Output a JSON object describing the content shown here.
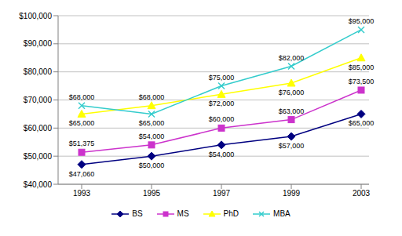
{
  "chart_data": {
    "type": "line",
    "categories": [
      "1993",
      "1995",
      "1997",
      "1999",
      "2003"
    ],
    "series": [
      {
        "name": "BS",
        "color": "#000080",
        "marker": "diamond",
        "values": [
          47060,
          50000,
          54000,
          57000,
          65000
        ],
        "value_labels": [
          "$47,060",
          "$50,000",
          "$54,000",
          "$57,000",
          "$65,000"
        ]
      },
      {
        "name": "MS",
        "color": "#cc33cc",
        "marker": "square",
        "values": [
          51375,
          54000,
          60000,
          63000,
          73500
        ],
        "value_labels": [
          "$51,375",
          "$54,000",
          "$60,000",
          "$63,000",
          "$73,500"
        ]
      },
      {
        "name": "PhD",
        "color": "#ffff00",
        "marker": "triangle",
        "values": [
          65000,
          68000,
          72000,
          76000,
          85000
        ],
        "value_labels": [
          "$65,000",
          "$68,000",
          "$72,000",
          "$76,000",
          "$85,000"
        ]
      },
      {
        "name": "MBA",
        "color": "#33cccc",
        "marker": "x",
        "values": [
          68000,
          65000,
          75000,
          82000,
          95000
        ],
        "value_labels": [
          "$68,000",
          "$65,000",
          "$75,000",
          "$82,000",
          "$95,000"
        ]
      }
    ],
    "ylim": [
      40000,
      100000
    ],
    "yticks": [
      {
        "value": 40000,
        "label": "$40,000"
      },
      {
        "value": 50000,
        "label": "$50,000"
      },
      {
        "value": 60000,
        "label": "$60,000"
      },
      {
        "value": 70000,
        "label": "$70,000"
      },
      {
        "value": 80000,
        "label": "$80,000"
      },
      {
        "value": 90000,
        "label": "$90,000"
      },
      {
        "value": 100000,
        "label": "$100,000"
      }
    ],
    "grid": true,
    "data_labels": true,
    "legend": "bottom"
  }
}
